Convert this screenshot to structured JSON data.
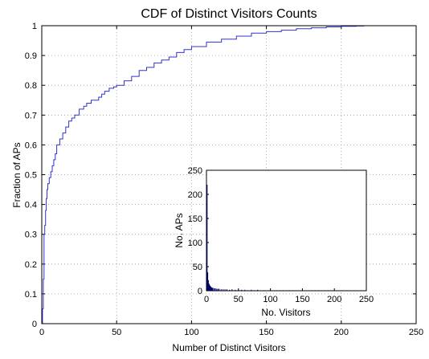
{
  "chart_data": [
    {
      "type": "line",
      "title": "CDF of Distinct Visitors Counts",
      "xlabel": "Number of Distinct Visitors",
      "ylabel": "Fraction of APs",
      "xlim": [
        0,
        250
      ],
      "ylim": [
        0,
        1
      ],
      "xticks": [
        "0",
        "50",
        "100",
        "150",
        "200",
        "250"
      ],
      "yticks": [
        "0",
        "0.1",
        "0.2",
        "0.3",
        "0.4",
        "0.5",
        "0.6",
        "0.7",
        "0.8",
        "0.9",
        "1"
      ],
      "grid": true,
      "series": [
        {
          "color": "#3333cc",
          "x": [
            0,
            0.5,
            1,
            1.5,
            2,
            2.5,
            3,
            3.5,
            4,
            5,
            6,
            7,
            8,
            9,
            10,
            12,
            14,
            16,
            18,
            20,
            22,
            25,
            28,
            30,
            33,
            35,
            38,
            40,
            42,
            45,
            48,
            50,
            55,
            60,
            65,
            70,
            75,
            80,
            85,
            90,
            95,
            100,
            110,
            120,
            130,
            140,
            150,
            160,
            170,
            180,
            190,
            200,
            210,
            215
          ],
          "y": [
            0,
            0.05,
            0.15,
            0.3,
            0.33,
            0.38,
            0.42,
            0.45,
            0.47,
            0.49,
            0.51,
            0.53,
            0.55,
            0.57,
            0.6,
            0.62,
            0.64,
            0.66,
            0.68,
            0.69,
            0.7,
            0.72,
            0.73,
            0.74,
            0.75,
            0.75,
            0.76,
            0.77,
            0.78,
            0.79,
            0.795,
            0.8,
            0.815,
            0.83,
            0.85,
            0.86,
            0.875,
            0.885,
            0.895,
            0.91,
            0.92,
            0.93,
            0.945,
            0.955,
            0.965,
            0.975,
            0.98,
            0.985,
            0.99,
            0.993,
            0.996,
            0.998,
            0.999,
            1.0
          ]
        }
      ]
    },
    {
      "type": "bar",
      "title": "",
      "xlabel": "No. Visitors",
      "ylabel": "No. APs",
      "xlim": [
        0,
        250
      ],
      "ylim": [
        0,
        250
      ],
      "xticks": [
        "0",
        "50",
        "100",
        "150",
        "200",
        "250"
      ],
      "yticks": [
        "0",
        "50",
        "100",
        "150",
        "200",
        "250"
      ],
      "grid": false,
      "bar_color": "#000066",
      "x": [
        1,
        2,
        3,
        4,
        5,
        6,
        7,
        8,
        9,
        10,
        12,
        14,
        16,
        18,
        20,
        23,
        26,
        29,
        32,
        36,
        40,
        45,
        50,
        55,
        60,
        65,
        70,
        75,
        80,
        90,
        100,
        110,
        120,
        130,
        150,
        170,
        190,
        210
      ],
      "values": [
        220,
        38,
        22,
        15,
        12,
        10,
        8,
        7,
        6,
        6,
        5,
        5,
        4,
        4,
        4,
        3,
        3,
        3,
        3,
        2,
        3,
        2,
        2,
        2,
        2,
        1,
        2,
        1,
        2,
        1,
        1,
        1,
        1,
        1,
        1,
        1,
        1,
        1
      ]
    }
  ]
}
